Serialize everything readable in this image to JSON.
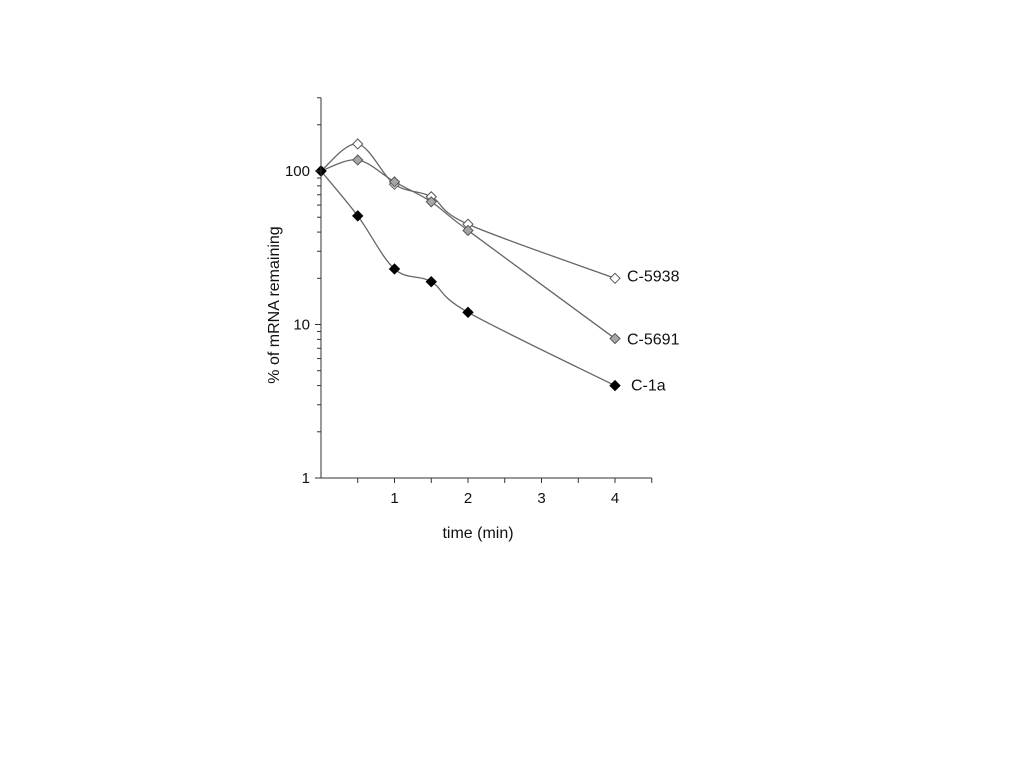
{
  "chart_data": {
    "type": "line",
    "xlabel": "time (min)",
    "ylabel": "% of mRNA remaining",
    "xlim": [
      0,
      4.5
    ],
    "ylim": [
      1,
      300
    ],
    "y_scale": "log",
    "x_ticks": [
      1,
      2,
      3,
      4
    ],
    "x_tick_labels": [
      "1",
      "2",
      "3",
      "4"
    ],
    "y_ticks": [
      1,
      10,
      100
    ],
    "y_tick_labels": [
      "1",
      "10",
      "100"
    ],
    "legend": "inline labels at line ends",
    "grid": false,
    "series": [
      {
        "name": "C-5938",
        "marker": "open-diamond",
        "marker_color": "#ffffff",
        "line_color": "#666666",
        "x": [
          0,
          0.5,
          1,
          1.5,
          2,
          4
        ],
        "y": [
          100,
          150,
          82,
          68,
          45,
          20
        ]
      },
      {
        "name": "C-5691",
        "marker": "gray-diamond",
        "marker_color": "#a6a6a6",
        "line_color": "#666666",
        "x": [
          0,
          0.5,
          1,
          1.5,
          2,
          4
        ],
        "y": [
          100,
          118,
          85,
          63,
          41,
          8.1
        ]
      },
      {
        "name": "C-1a",
        "marker": "filled-diamond",
        "marker_color": "#000000",
        "line_color": "#666666",
        "x": [
          0,
          0.5,
          1,
          1.5,
          2,
          4
        ],
        "y": [
          100,
          51,
          23,
          19,
          12,
          4
        ]
      }
    ]
  }
}
